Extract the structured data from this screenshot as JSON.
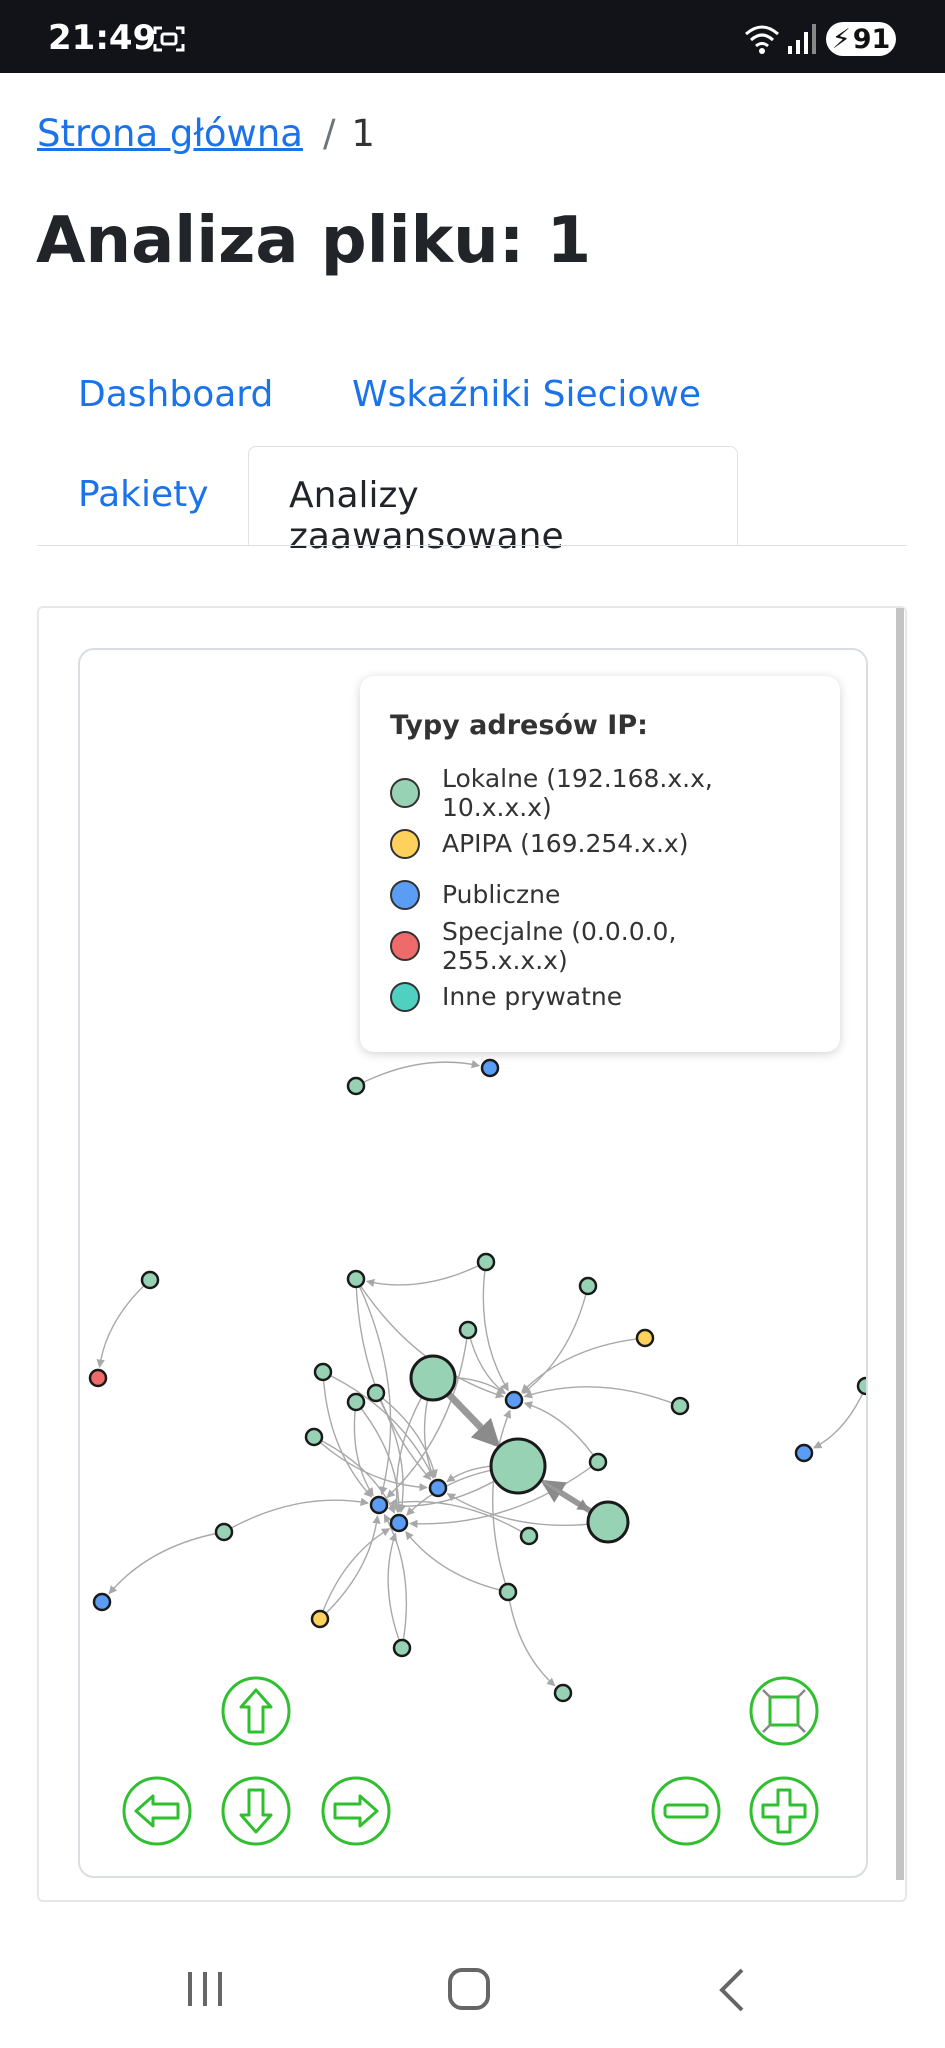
{
  "status_bar": {
    "time": "21:49",
    "battery": "91"
  },
  "breadcrumb": {
    "home": "Strona główna",
    "separator": "/",
    "current": "1"
  },
  "page_title": "Analiza pliku: 1",
  "tabs": [
    {
      "label": "Dashboard",
      "active": false
    },
    {
      "label": "Wskaźniki Sieciowe",
      "active": false
    },
    {
      "label": "Pakiety",
      "active": false
    },
    {
      "label": "Analizy zaawansowane",
      "active": true
    }
  ],
  "legend": {
    "title": "Typy adresów IP:",
    "items": [
      {
        "label": "Lokalne (192.168.x.x, 10.x.x.x)",
        "color": "#98d2b4"
      },
      {
        "label": "APIPA (169.254.x.x)",
        "color": "#fdd15c"
      },
      {
        "label": "Publiczne",
        "color": "#5b9cf5"
      },
      {
        "label": "Specjalne (0.0.0.0, 255.x.x.x)",
        "color": "#ef6a6a"
      },
      {
        "label": "Inne prywatne",
        "color": "#4fd0c0"
      }
    ]
  },
  "graph_controls": [
    "up-arrow",
    "left-arrow",
    "down-arrow",
    "right-arrow",
    "zoom-out",
    "zoom-in",
    "fit-to-screen"
  ],
  "colors": {
    "link": "#1a73e8",
    "control_green": "#2fbf2f"
  }
}
